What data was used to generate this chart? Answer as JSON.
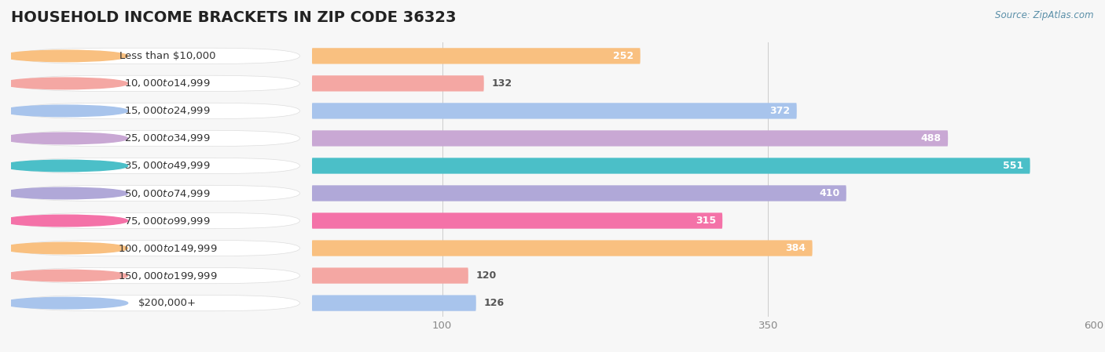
{
  "title": "HOUSEHOLD INCOME BRACKETS IN ZIP CODE 36323",
  "source": "Source: ZipAtlas.com",
  "categories": [
    "Less than $10,000",
    "$10,000 to $14,999",
    "$15,000 to $24,999",
    "$25,000 to $34,999",
    "$35,000 to $49,999",
    "$50,000 to $74,999",
    "$75,000 to $99,999",
    "$100,000 to $149,999",
    "$150,000 to $199,999",
    "$200,000+"
  ],
  "values": [
    252,
    132,
    372,
    488,
    551,
    410,
    315,
    384,
    120,
    126
  ],
  "bar_colors": [
    "#F9C080",
    "#F4A7A3",
    "#A8C4EC",
    "#C9A8D4",
    "#4BBFC8",
    "#B0A8D8",
    "#F472A8",
    "#F9C080",
    "#F4A7A3",
    "#A8C4EC"
  ],
  "circle_colors": [
    "#F9C080",
    "#F4A7A3",
    "#A8C4EC",
    "#C9A8D4",
    "#4BBFC8",
    "#B0A8D8",
    "#F472A8",
    "#F9C080",
    "#F4A7A3",
    "#A8C4EC"
  ],
  "bg_color": "#f7f7f7",
  "row_bg_even": "#ffffff",
  "row_bg_odd": "#eeeeee",
  "xlim": [
    0,
    600
  ],
  "xticks": [
    100,
    350,
    600
  ],
  "title_fontsize": 14,
  "label_fontsize": 9.5,
  "value_fontsize": 9
}
